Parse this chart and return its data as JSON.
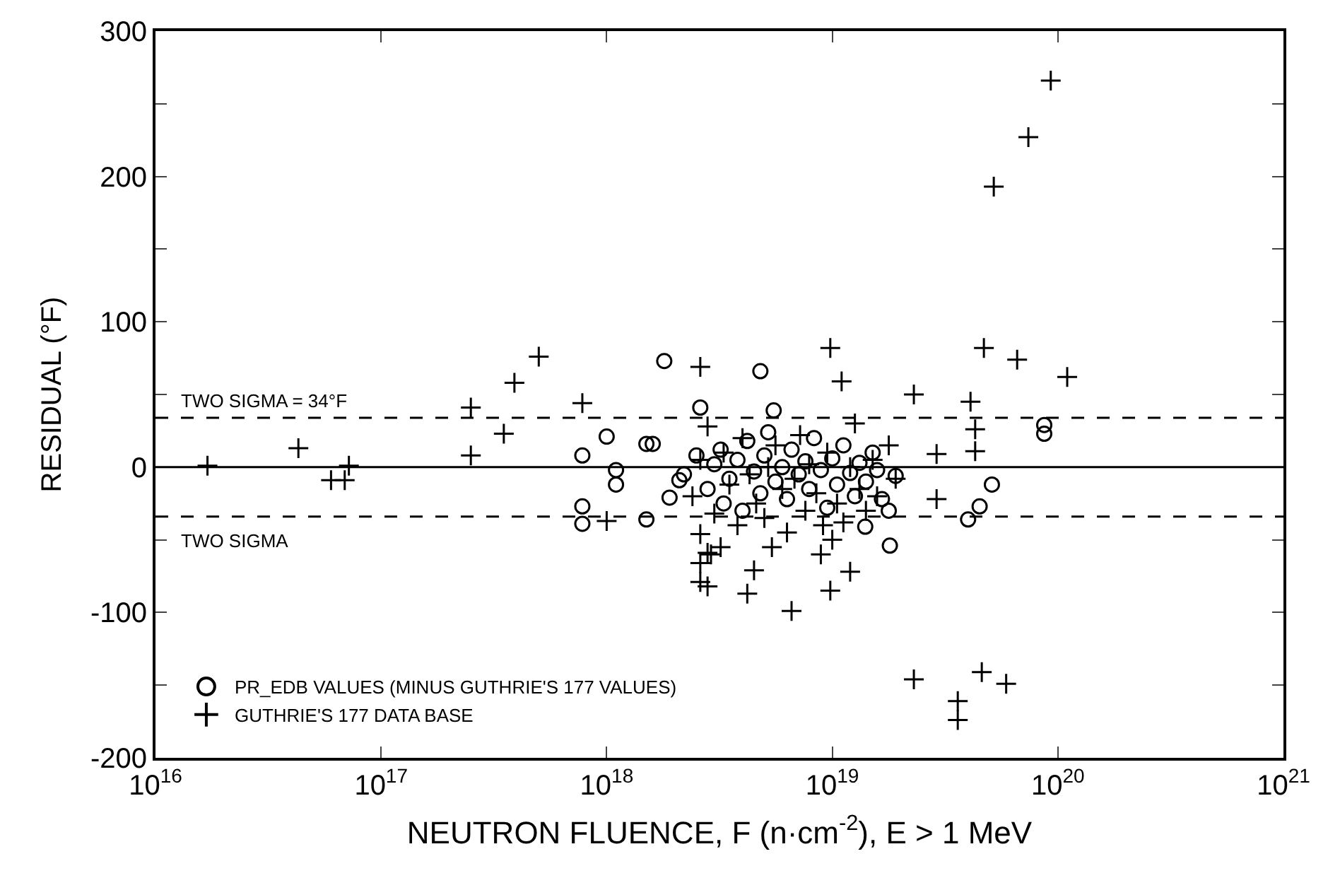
{
  "chart_data": {
    "type": "scatter",
    "xlabel": "NEUTRON FLUENCE, F (n·cm$^{-2}$), E > 1 MeV",
    "ylabel": "RESIDUAL (°F)",
    "log": "x",
    "xlim": [
      1e+16,
      1e+21
    ],
    "xticks": [
      {
        "value": 1e+16,
        "label": "10$^{16}$"
      },
      {
        "value": 1e+17,
        "label": "10$^{17}$"
      },
      {
        "value": 1e+18,
        "label": "10$^{18}$"
      },
      {
        "value": 1e+19,
        "label": "10$^{19}$"
      },
      {
        "value": 1e+20,
        "label": "10$^{20}$"
      },
      {
        "value": 1e+21,
        "label": "10$^{21}$"
      }
    ],
    "ylim": [
      -200,
      300
    ],
    "yticks": [
      -200,
      {
        "value": -150,
        "label": null
      },
      -100,
      {
        "value": -50,
        "label": null
      },
      0,
      {
        "value": 50,
        "label": null
      },
      100,
      {
        "value": 150,
        "label": null
      },
      200,
      {
        "value": 250,
        "label": null
      },
      300
    ],
    "legend": "bottom left",
    "ref_lines": [
      {
        "axis": "y",
        "value": 34,
        "label": "TWO SIGMA = 34°F",
        "color": "#000000",
        "line_style": "dashed"
      },
      {
        "axis": "y",
        "value": 0,
        "label": null,
        "color": "#000000",
        "line_style": "solid"
      },
      {
        "axis": "y",
        "value": -34,
        "label": "TWO SIGMA",
        "color": "#000000",
        "line_style": "dashed"
      }
    ],
    "series": [
      {
        "name": "PR_EDB VALUES (MINUS GUTHRIE'S 177 VALUES)",
        "color": "#000000",
        "marker": "circle",
        "x": [
          1.8e+18,
          4.8e+18,
          5.5e+18,
          2.6e+18,
          5.1e+19,
          4.5e+19,
          4e+19,
          1.8e+19,
          8.7e+19,
          8.7e+19,
          1.4e+19,
          7.8e+17,
          7.8e+17,
          7.8e+17,
          1e+18,
          1.1e+18,
          1.1e+18,
          1.5e+18,
          1.6e+18,
          2.1e+18,
          1.9e+18,
          1.5e+18,
          2.2e+18,
          2.5e+18,
          2.8e+18,
          3e+18,
          3.2e+18,
          3.3e+18,
          3.5e+18,
          3.8e+18,
          4e+18,
          4.2e+18,
          4.5e+18,
          4.8e+18,
          5e+18,
          5.2e+18,
          5.6e+18,
          6e+18,
          6.3e+18,
          6.6e+18,
          7.1e+18,
          7.6e+18,
          7.9e+18,
          8.3e+18,
          8.9e+18,
          9.5e+18,
          1e+19,
          1.05e+19,
          1.12e+19,
          1.2e+19,
          1.26e+19,
          1.32e+19,
          1.41e+19,
          1.51e+19,
          1.58e+19,
          1.66e+19,
          1.78e+19,
          1.91e+19
        ],
        "values": [
          73,
          66,
          39,
          41,
          -12,
          -27,
          -36,
          -54,
          23,
          29,
          -41,
          -27,
          -39,
          8,
          21,
          -12,
          -2,
          16,
          16,
          -9,
          -21,
          -36,
          -5,
          8,
          -15,
          2,
          12,
          -25,
          -8,
          5,
          -30,
          18,
          -3,
          -18,
          8,
          24,
          -10,
          0,
          -22,
          12,
          -5,
          4,
          -15,
          20,
          -2,
          -28,
          6,
          -12,
          15,
          -4,
          -20,
          3,
          -10,
          10,
          -2,
          -22,
          -30,
          -6
        ]
      },
      {
        "name": "GUTHRIE'S 177 DATA BASE",
        "color": "#000000",
        "marker": "cross",
        "x": [
          1.7e+16,
          4.3e+16,
          6e+16,
          6.9e+16,
          7.2e+16,
          2.5e+17,
          3.5e+17,
          2.5e+17,
          3.9e+17,
          5e+17,
          7.8e+17,
          1e+18,
          2.6e+18,
          2.6e+18,
          2.6e+18,
          2.8e+18,
          9.3e+19,
          7.4e+19,
          5.2e+19,
          4.7e+19,
          6.6e+19,
          1.1e+20,
          2.3e+19,
          9.8e+18,
          2.6e+18,
          4.1e+19,
          1.1e+19,
          2.3e+19,
          4.6e+19,
          5.9e+19,
          3.6e+19,
          3.6e+19,
          6.6e+18,
          9.8e+18,
          1.2e+19,
          4.2e+18,
          4.5e+18,
          2.8e+18,
          2.9e+19,
          2.9e+19,
          4.3e+19,
          4.3e+19,
          2.4e+18,
          2.6e+18,
          2.8e+18,
          3e+18,
          3.3e+18,
          3.5e+18,
          3.8e+18,
          4e+18,
          4.3e+18,
          4.6e+18,
          5e+18,
          5.2e+18,
          5.6e+18,
          6e+18,
          6.3e+18,
          6.8e+18,
          7.2e+18,
          7.6e+18,
          7.9e+18,
          8.5e+18,
          9.1e+18,
          9.5e+18,
          1.05e+19,
          1.12e+19,
          1.2e+19,
          1.26e+19,
          1.32e+19,
          1.41e+19,
          1.51e+19,
          1.58e+19,
          1.78e+19,
          1.91e+19,
          3.2e+18,
          2.9e+18,
          5.4e+18,
          8.9e+18,
          1e+19
        ],
        "values": [
          1,
          13,
          -9,
          -9,
          1,
          8,
          23,
          41,
          58,
          76,
          44,
          -37,
          -46,
          -66,
          -79,
          -59,
          266,
          227,
          193,
          82,
          74,
          62,
          50,
          82,
          69,
          45,
          59,
          -146,
          -141,
          -149,
          -161,
          -174,
          -99,
          -85,
          -72,
          -87,
          -71,
          -82,
          -22,
          9,
          11,
          26,
          -20,
          5,
          28,
          -32,
          10,
          -12,
          -40,
          20,
          -5,
          -25,
          -35,
          0,
          15,
          -15,
          -45,
          -8,
          22,
          -30,
          2,
          -18,
          -40,
          10,
          -25,
          -38,
          0,
          30,
          -15,
          -30,
          5,
          -20,
          15,
          -8,
          -55,
          -60,
          -55,
          -60,
          -50
        ]
      }
    ]
  }
}
